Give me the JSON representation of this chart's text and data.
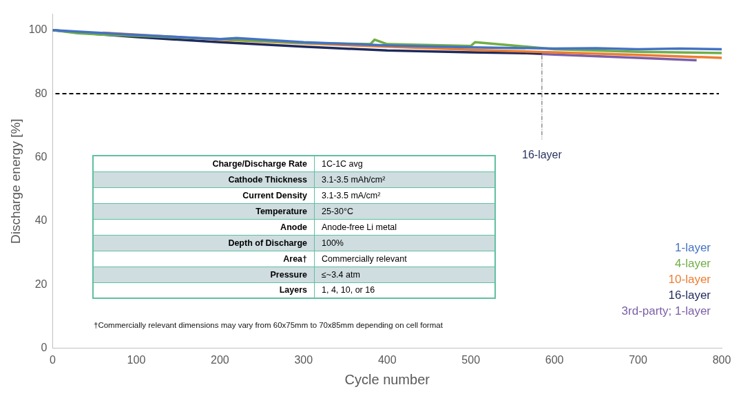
{
  "chart_data": {
    "type": "line",
    "xlabel": "Cycle number",
    "ylabel": "Discharge energy [%]",
    "xlim": [
      0,
      800
    ],
    "xticks": [
      0,
      100,
      200,
      300,
      400,
      500,
      600,
      700,
      800
    ],
    "ylim": [
      0,
      105
    ],
    "yticks": [
      0,
      20,
      40,
      60,
      80,
      100
    ],
    "legend": "bottom right",
    "marker": "none",
    "line_style": "solid",
    "ref_lines": [
      {
        "axis": "y",
        "value": 80,
        "color": "#000000",
        "line_style": "dashed"
      }
    ],
    "series": [
      {
        "name": "1-layer",
        "color": "#4472c4",
        "x": [
          0,
          100,
          200,
          220,
          300,
          400,
          500,
          600,
          650,
          700,
          750,
          800
        ],
        "values": [
          100,
          98.5,
          97.2,
          97.5,
          96.2,
          95.2,
          94.6,
          94.2,
          94.3,
          94.0,
          94.2,
          94.0
        ]
      },
      {
        "name": "4-layer",
        "color": "#70ad47",
        "x": [
          0,
          30,
          60,
          100,
          200,
          300,
          380,
          385,
          400,
          500,
          505,
          600,
          700,
          800
        ],
        "values": [
          100,
          99.0,
          98.6,
          98.2,
          97.2,
          96.0,
          95.6,
          97.0,
          95.6,
          95.0,
          96.2,
          94.0,
          93.2,
          92.8
        ]
      },
      {
        "name": "10-layer",
        "color": "#ed7d31",
        "x": [
          60,
          100,
          200,
          300,
          400,
          500,
          600,
          700,
          800
        ],
        "values": [
          99.2,
          98.6,
          97.0,
          95.8,
          94.8,
          93.8,
          93.0,
          92.2,
          91.3
        ]
      },
      {
        "name": "16-layer",
        "color": "#1f2a5c",
        "x": [
          0,
          50,
          100,
          200,
          300,
          400,
          500,
          585
        ],
        "values": [
          100,
          98.8,
          97.8,
          96.2,
          94.8,
          93.6,
          93.0,
          92.7
        ]
      },
      {
        "name": "3rd-party; 1-layer",
        "color": "#7b5ea7",
        "x": [
          560,
          600,
          700,
          770
        ],
        "values": [
          92.8,
          92.3,
          91.3,
          90.5
        ]
      }
    ],
    "annotations": [
      {
        "text": "16-layer",
        "x": 585,
        "y": 92.7
      },
      "Charge/Discharge Rate",
      "1C-1C avg",
      "Cathode Thickness",
      "3.1-3.5 mAh/cm²",
      "Current Density",
      "3.1-3.5 mA/cm²",
      "Temperature",
      "25-30°C",
      "Anode",
      "Anode-free Li metal",
      "Depth of Discharge",
      "100%",
      "Area†",
      "Commercially relevant",
      "Pressure",
      "≤~3.4 atm",
      "Layers",
      "1, 4, 10, or 16",
      "†Commercially relevant dimensions may vary from 60x75mm to 70x85mm depending on cell format"
    ]
  }
}
